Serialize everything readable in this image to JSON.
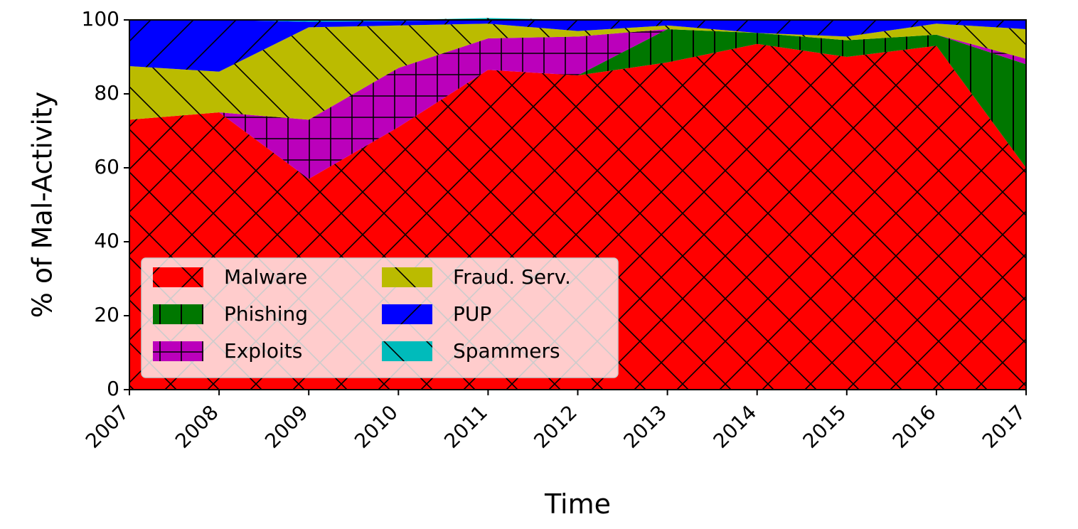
{
  "chart_data": {
    "type": "area",
    "stacked": true,
    "title": "",
    "xlabel": "Time",
    "ylabel": "% of Mal-Activity",
    "x": [
      "2007",
      "2008",
      "2009",
      "2010",
      "2011",
      "2012",
      "2013",
      "2014",
      "2015",
      "2016",
      "2017"
    ],
    "yticks": [
      "0",
      "20",
      "40",
      "60",
      "80",
      "100"
    ],
    "ylim": [
      0,
      100
    ],
    "grid": false,
    "legend_position": "lower-left",
    "series": [
      {
        "name": "Malware",
        "color": "#ff0000",
        "hatch": "crosshatch",
        "values": [
          73,
          75,
          57,
          71,
          86.5,
          85,
          88.5,
          93.5,
          90,
          93,
          60
        ]
      },
      {
        "name": "Phishing",
        "color": "#007700",
        "hatch": "vertical",
        "values": [
          0,
          0,
          0,
          0,
          0,
          0,
          9,
          3,
          4.5,
          3,
          28
        ]
      },
      {
        "name": "Exploits",
        "color": "#bb00bb",
        "hatch": "grid",
        "values": [
          0,
          0,
          16,
          16,
          8.5,
          10.5,
          0,
          0,
          0,
          0,
          1.5
        ]
      },
      {
        "name": "Fraud. Serv.",
        "color": "#bbbb00",
        "hatch": "backslash",
        "values": [
          14.5,
          11,
          25,
          11.5,
          4,
          1.5,
          1,
          0,
          1,
          3,
          8
        ]
      },
      {
        "name": "PUP",
        "color": "#0000ff",
        "hatch": "slash",
        "values": [
          12.5,
          14,
          1.5,
          1.2,
          1,
          3,
          1.5,
          3.5,
          4.5,
          1,
          2.5
        ]
      },
      {
        "name": "Spammers",
        "color": "#00bbbb",
        "hatch": "backslash",
        "values": [
          0,
          0,
          0.5,
          0.3,
          0.5,
          0,
          0,
          0,
          0,
          0,
          0
        ]
      }
    ]
  }
}
